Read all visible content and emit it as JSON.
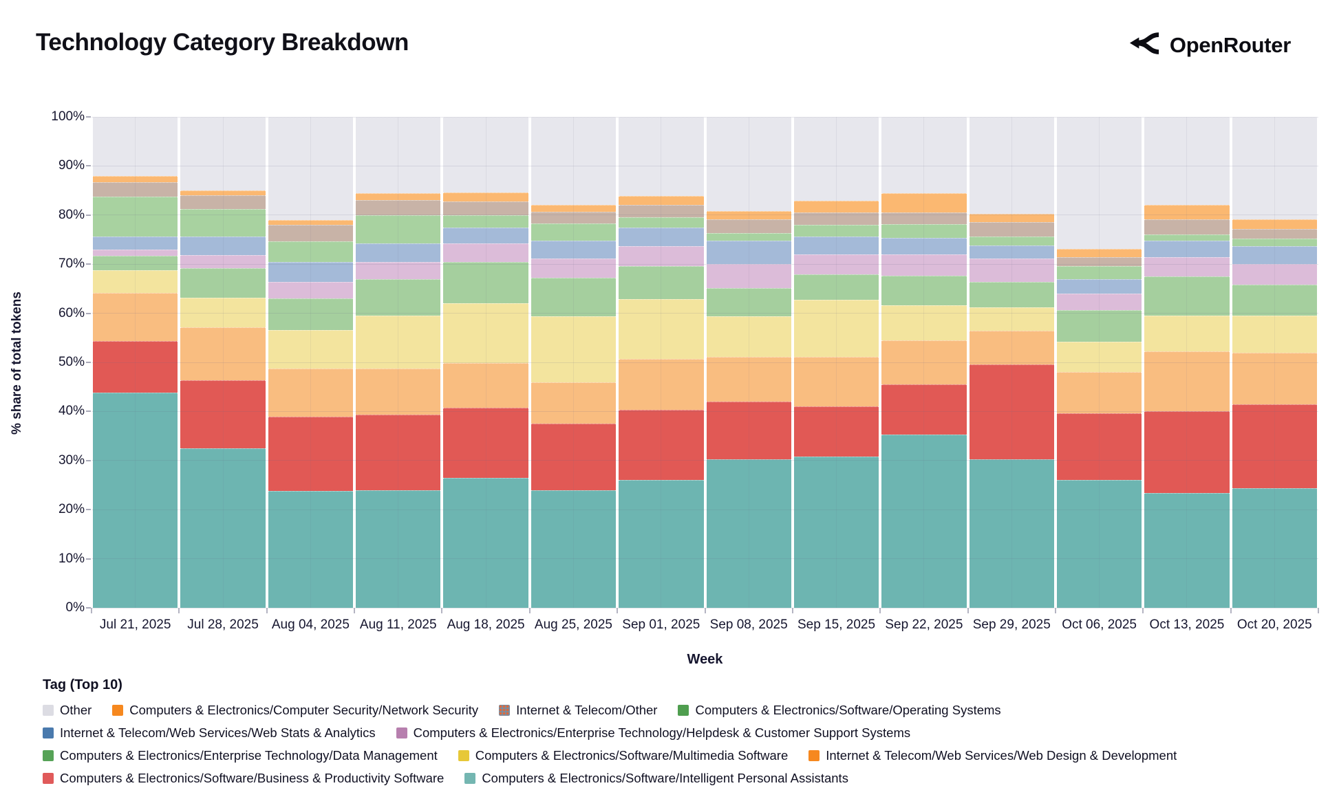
{
  "header": {
    "title": "Technology Category Breakdown",
    "brand": "OpenRouter"
  },
  "chart_data": {
    "type": "bar",
    "subtype": "stacked-100-percent",
    "title": "Technology Category Breakdown",
    "xlabel": "Week",
    "ylabel": "% share of total tokens",
    "ylim": [
      0,
      100
    ],
    "y_ticks": [
      "0%",
      "10%",
      "20%",
      "30%",
      "40%",
      "50%",
      "60%",
      "70%",
      "80%",
      "90%",
      "100%"
    ],
    "grid": true,
    "legend_title": "Tag (Top 10)",
    "legend_position": "bottom",
    "categories": [
      "Jul 21, 2025",
      "Jul 28, 2025",
      "Aug 04, 2025",
      "Aug 11, 2025",
      "Aug 18, 2025",
      "Aug 25, 2025",
      "Sep 01, 2025",
      "Sep 08, 2025",
      "Sep 15, 2025",
      "Sep 22, 2025",
      "Sep 29, 2025",
      "Oct 06, 2025",
      "Oct 13, 2025",
      "Oct 20, 2025"
    ],
    "series_note": "values are percent of total tokens per week; listed bottom-to-top of the stack; each week sums to 100",
    "series": [
      {
        "id": "ipa",
        "label": "Computers & Electronics/Software/Intelligent Personal Assistants",
        "bar_color": "#6db5b1",
        "swatch_color": "#74b6b1",
        "values": [
          43.8,
          32.5,
          23.8,
          24.0,
          26.5,
          23.9,
          26.0,
          30.2,
          30.8,
          35.3,
          30.3,
          26.0,
          23.4,
          24.4
        ]
      },
      {
        "id": "business",
        "label": "Computers & Electronics/Software/Business & Productivity Software",
        "bar_color": "#e15955",
        "swatch_color": "#e05a5a",
        "values": [
          10.5,
          13.9,
          15.1,
          15.4,
          14.2,
          13.7,
          14.3,
          11.8,
          10.2,
          10.2,
          19.3,
          13.7,
          16.6,
          17.0
        ]
      },
      {
        "id": "webdesign",
        "label": "Internet & Telecom/Web Services/Web Design & Development",
        "bar_color": "#f9bd80",
        "swatch_color": "#f6881f",
        "values": [
          9.9,
          10.8,
          9.8,
          9.3,
          9.1,
          8.3,
          10.4,
          9.1,
          10.1,
          9.0,
          6.8,
          8.3,
          12.2,
          10.6
        ]
      },
      {
        "id": "multimedia",
        "label": "Computers & Electronics/Software/Multimedia Software",
        "bar_color": "#f3e49e",
        "swatch_color": "#e7c838",
        "values": [
          4.6,
          6.0,
          7.9,
          10.8,
          12.2,
          13.5,
          12.2,
          8.3,
          11.6,
          7.2,
          4.8,
          6.2,
          7.4,
          7.6
        ]
      },
      {
        "id": "datamgmt",
        "label": "Computers & Electronics/Enterprise Technology/Data Management",
        "bar_color": "#a5cf9e",
        "swatch_color": "#56a357",
        "values": [
          2.9,
          6.0,
          6.4,
          7.5,
          8.4,
          7.9,
          6.7,
          5.7,
          5.2,
          5.9,
          5.2,
          6.4,
          7.9,
          6.2
        ]
      },
      {
        "id": "helpdesk",
        "label": "Computers & Electronics/Enterprise Technology/Helpdesk & Customer Support Systems",
        "bar_color": "#dcbcd9",
        "pattern": "dots",
        "swatch_color": "#b77fae",
        "values": [
          1.3,
          2.7,
          3.4,
          3.4,
          3.8,
          3.9,
          4.1,
          5.0,
          4.1,
          4.4,
          4.8,
          3.4,
          3.9,
          4.3
        ]
      },
      {
        "id": "webstats",
        "label": "Internet & Telecom/Web Services/Web Stats & Analytics",
        "bar_color": "#a4bad8",
        "swatch_color": "#4a7aad",
        "values": [
          2.7,
          3.8,
          4.1,
          3.9,
          3.2,
          3.6,
          3.8,
          4.7,
          3.6,
          3.4,
          2.6,
          3.0,
          3.4,
          3.6
        ]
      },
      {
        "id": "os",
        "label": "Computers & Electronics/Software/Operating Systems",
        "bar_color": "#a8d2a0",
        "swatch_color": "#4f9e4f",
        "values": [
          8.0,
          5.6,
          4.2,
          5.7,
          2.6,
          3.5,
          2.0,
          1.6,
          2.4,
          2.8,
          1.9,
          2.6,
          1.2,
          1.5
        ]
      },
      {
        "id": "itother",
        "label": "Internet & Telecom/Other",
        "bar_color": "#c8b3a7",
        "pattern": "dots-soft",
        "swatch_pattern": "slate-orange-dots",
        "values": [
          3.0,
          2.7,
          3.3,
          3.0,
          2.8,
          2.4,
          2.6,
          2.7,
          2.5,
          2.4,
          2.9,
          1.9,
          3.2,
          2.0
        ]
      },
      {
        "id": "netsec",
        "label": "Computers & Electronics/Computer Security/Network Security",
        "bar_color": "#fbb871",
        "swatch_color": "#f6881f",
        "values": [
          1.3,
          1.0,
          1.0,
          1.4,
          1.8,
          1.4,
          1.8,
          1.7,
          2.4,
          3.8,
          1.6,
          1.6,
          2.9,
          2.0
        ]
      },
      {
        "id": "other",
        "label": "Other",
        "bar_color": "#e7e7ed",
        "swatch_color": "#dcdce3",
        "values": [
          12.0,
          15.0,
          21.0,
          15.6,
          15.4,
          17.9,
          16.1,
          19.2,
          17.1,
          15.6,
          19.8,
          26.9,
          17.9,
          20.8
        ]
      }
    ],
    "legend_rows": [
      [
        "other",
        "netsec",
        "itother",
        "os"
      ],
      [
        "webstats",
        "helpdesk"
      ],
      [
        "datamgmt",
        "multimedia",
        "webdesign"
      ],
      [
        "business",
        "ipa"
      ]
    ]
  }
}
